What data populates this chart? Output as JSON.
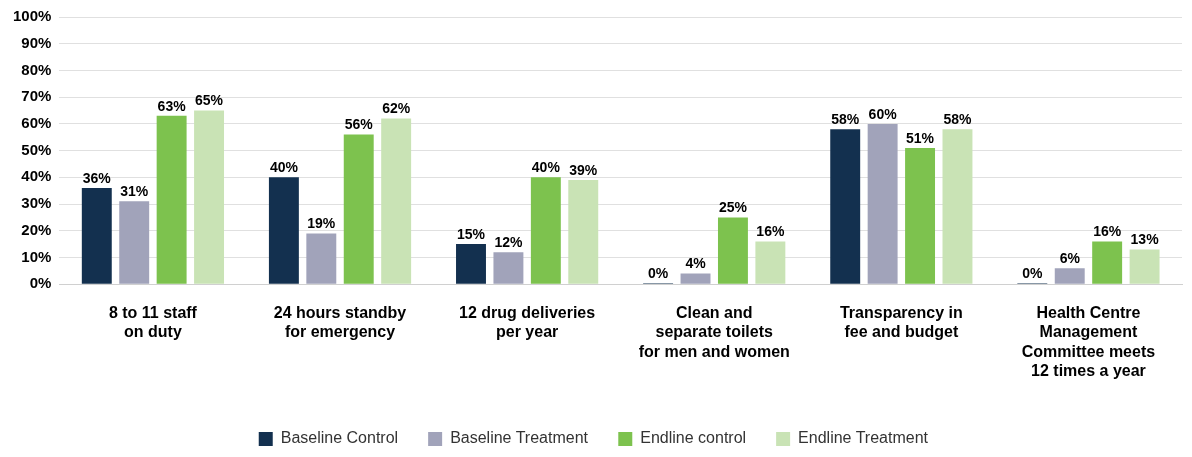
{
  "chart_data": {
    "type": "bar",
    "categories": [
      "8 to 11 staff\non duty",
      "24 hours standby\nfor emergency",
      "12 drug deliveries\nper year",
      "Clean and\nseparate toilets\nfor men and women",
      "Transparency in\nfee and budget",
      "Health Centre\nManagement\nCommittee meets\n12 times a year"
    ],
    "series": [
      {
        "name": "Baseline Control",
        "color": "#13304f",
        "values": [
          36,
          40,
          15,
          0,
          58,
          0
        ],
        "value_labels": [
          "36%",
          "40%",
          "15%",
          "0%",
          "58%",
          "0%"
        ]
      },
      {
        "name": "Baseline Treatment",
        "color": "#a1a3ba",
        "values": [
          31,
          19,
          12,
          4,
          60,
          6
        ],
        "value_labels": [
          "31%",
          "19%",
          "12%",
          "4%",
          "60%",
          "6%"
        ]
      },
      {
        "name": "Endline control",
        "color": "#7dc24e",
        "values": [
          63,
          56,
          40,
          25,
          51,
          16
        ],
        "value_labels": [
          "63%",
          "56%",
          "40%",
          "25%",
          "51%",
          "16%"
        ]
      },
      {
        "name": "Endline Treatment",
        "color": "#c9e3b5",
        "values": [
          65,
          62,
          39,
          16,
          58,
          13
        ],
        "value_labels": [
          "65%",
          "62%",
          "39%",
          "16%",
          "58%",
          "13%"
        ]
      }
    ],
    "ylim": [
      0,
      100
    ],
    "yticks": [
      {
        "value": 0,
        "label": "0%"
      },
      {
        "value": 10,
        "label": "10%"
      },
      {
        "value": 20,
        "label": "20%"
      },
      {
        "value": 30,
        "label": "30%"
      },
      {
        "value": 40,
        "label": "40%"
      },
      {
        "value": 50,
        "label": "50%"
      },
      {
        "value": 60,
        "label": "60%"
      },
      {
        "value": 70,
        "label": "70%"
      },
      {
        "value": 80,
        "label": "80%"
      },
      {
        "value": 90,
        "label": "90%"
      },
      {
        "value": 100,
        "label": "100%"
      }
    ],
    "grid": "y",
    "legend": "bottom"
  }
}
